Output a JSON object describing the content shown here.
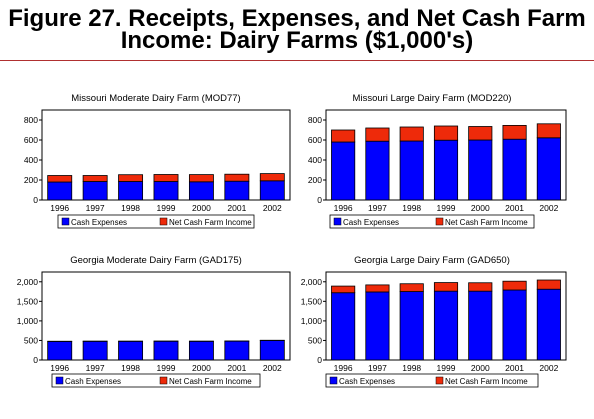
{
  "figure": {
    "title_line1": "Figure 27.  Receipts, Expenses, and Net Cash Farm",
    "title_line2": "Income:  Dairy Farms ($1,000's)"
  },
  "colors": {
    "expenses": "#0000ff",
    "net_income": "#ee2a0a",
    "rule": "#b03030"
  },
  "chart_data": [
    {
      "type": "bar",
      "stacked": true,
      "title": "Missouri Moderate Dairy Farm (MOD77)",
      "categories": [
        "1996",
        "1997",
        "1998",
        "1999",
        "2000",
        "2001",
        "2002"
      ],
      "series": [
        {
          "name": "Cash Expenses",
          "values": [
            180,
            185,
            185,
            185,
            182,
            188,
            192
          ]
        },
        {
          "name": "Net Cash Farm Income",
          "values": [
            65,
            60,
            68,
            70,
            72,
            70,
            72
          ]
        }
      ],
      "ylim": [
        0,
        900
      ],
      "yticks": [
        0,
        200,
        400,
        600,
        800
      ],
      "ytick_labels": [
        "0",
        "200",
        "400",
        "600",
        "800"
      ],
      "legend_position": "bottom",
      "grid": false
    },
    {
      "type": "bar",
      "stacked": true,
      "title": "Missouri Large Dairy Farm (MOD220)",
      "categories": [
        "1996",
        "1997",
        "1998",
        "1999",
        "2000",
        "2001",
        "2002"
      ],
      "series": [
        {
          "name": "Cash Expenses",
          "values": [
            580,
            588,
            590,
            598,
            600,
            608,
            622
          ]
        },
        {
          "name": "Net Cash Farm Income",
          "values": [
            120,
            132,
            140,
            142,
            135,
            138,
            140
          ]
        }
      ],
      "ylim": [
        0,
        900
      ],
      "yticks": [
        0,
        200,
        400,
        600,
        800
      ],
      "ytick_labels": [
        "0",
        "200",
        "400",
        "600",
        "800"
      ],
      "legend_position": "bottom",
      "grid": false
    },
    {
      "type": "bar",
      "stacked": true,
      "title": "Georgia Moderate Dairy Farm (GAD175)",
      "categories": [
        "1996",
        "1997",
        "1998",
        "1999",
        "2000",
        "2001",
        "2002"
      ],
      "series": [
        {
          "name": "Cash Expenses",
          "values": [
            475,
            478,
            478,
            480,
            478,
            482,
            500
          ]
        },
        {
          "name": "Net Cash Farm Income",
          "values": [
            5,
            5,
            5,
            5,
            5,
            5,
            5
          ]
        }
      ],
      "ylim": [
        0,
        2250
      ],
      "yticks": [
        0,
        500,
        1000,
        1500,
        2000
      ],
      "ytick_labels": [
        "0",
        "500",
        "1,000",
        "1,500",
        "2,000"
      ],
      "legend_position": "bottom",
      "grid": false
    },
    {
      "type": "bar",
      "stacked": true,
      "title": "Georgia Large Dairy Farm (GAD650)",
      "categories": [
        "1996",
        "1997",
        "1998",
        "1999",
        "2000",
        "2001",
        "2002"
      ],
      "series": [
        {
          "name": "Cash Expenses",
          "values": [
            1720,
            1740,
            1750,
            1760,
            1760,
            1790,
            1810
          ]
        },
        {
          "name": "Net Cash Farm Income",
          "values": [
            170,
            180,
            200,
            220,
            215,
            225,
            235
          ]
        }
      ],
      "ylim": [
        0,
        2250
      ],
      "yticks": [
        0,
        500,
        1000,
        1500,
        2000
      ],
      "ytick_labels": [
        "0",
        "500",
        "1,000",
        "1,500",
        "2,000"
      ],
      "legend_position": "bottom",
      "grid": false
    }
  ]
}
